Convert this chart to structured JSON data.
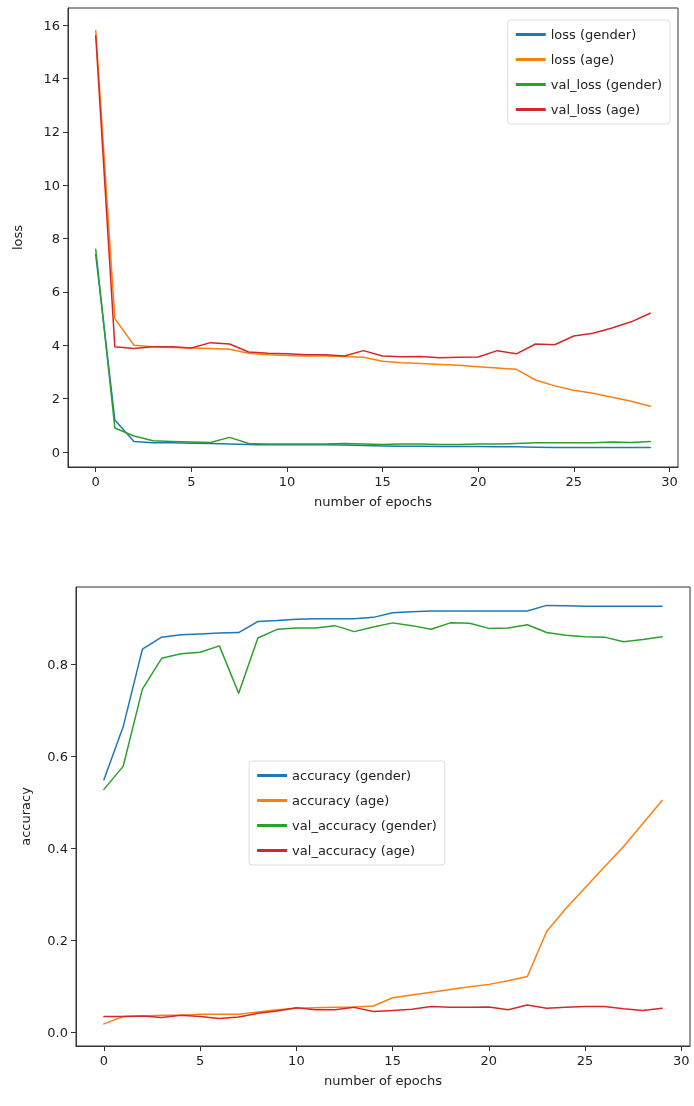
{
  "chart_data": [
    {
      "type": "line",
      "xlabel": "number of epochs",
      "ylabel": "loss",
      "x": [
        0,
        1,
        2,
        3,
        4,
        5,
        6,
        7,
        8,
        9,
        10,
        11,
        12,
        13,
        14,
        15,
        16,
        17,
        18,
        19,
        20,
        21,
        22,
        23,
        24,
        25,
        26,
        27,
        28,
        29
      ],
      "xlim": [
        -1.45,
        30.45
      ],
      "xticks": [
        0,
        5,
        10,
        15,
        20,
        25,
        30
      ],
      "ylim": [
        -0.56,
        16.64
      ],
      "yticks": [
        0,
        2,
        4,
        6,
        8,
        10,
        12,
        14,
        16
      ],
      "grid": false,
      "legend": "top right",
      "marker": "none",
      "line_style": "solid",
      "series": [
        {
          "name": "loss (gender)",
          "color": "#1f77b4",
          "values": [
            7.4,
            1.2,
            0.4,
            0.35,
            0.35,
            0.33,
            0.32,
            0.3,
            0.28,
            0.27,
            0.27,
            0.27,
            0.27,
            0.26,
            0.25,
            0.23,
            0.22,
            0.22,
            0.21,
            0.21,
            0.21,
            0.2,
            0.2,
            0.18,
            0.17,
            0.17,
            0.17,
            0.17,
            0.17,
            0.17
          ]
        },
        {
          "name": "loss (age)",
          "color": "#ff7f0e",
          "values": [
            15.8,
            5.0,
            4.0,
            3.95,
            3.92,
            3.9,
            3.88,
            3.85,
            3.7,
            3.65,
            3.62,
            3.6,
            3.6,
            3.58,
            3.55,
            3.4,
            3.35,
            3.32,
            3.28,
            3.25,
            3.2,
            3.15,
            3.1,
            2.7,
            2.48,
            2.32,
            2.2,
            2.05,
            1.9,
            1.72
          ]
        },
        {
          "name": "val_loss (gender)",
          "color": "#2ca02c",
          "values": [
            7.6,
            0.9,
            0.6,
            0.42,
            0.4,
            0.38,
            0.36,
            0.55,
            0.32,
            0.3,
            0.3,
            0.3,
            0.3,
            0.32,
            0.3,
            0.28,
            0.3,
            0.3,
            0.28,
            0.28,
            0.3,
            0.3,
            0.32,
            0.35,
            0.35,
            0.35,
            0.35,
            0.38,
            0.36,
            0.4
          ]
        },
        {
          "name": "val_loss (age)",
          "color": "#d62728",
          "values": [
            15.6,
            3.95,
            3.88,
            3.95,
            3.95,
            3.9,
            4.1,
            4.05,
            3.75,
            3.7,
            3.68,
            3.65,
            3.65,
            3.6,
            3.8,
            3.6,
            3.57,
            3.58,
            3.53,
            3.55,
            3.56,
            3.8,
            3.68,
            4.05,
            4.02,
            4.35,
            4.45,
            4.65,
            4.88,
            5.2
          ]
        }
      ]
    },
    {
      "type": "line",
      "xlabel": "number of epochs",
      "ylabel": "accuracy",
      "x": [
        0,
        1,
        2,
        3,
        4,
        5,
        6,
        7,
        8,
        9,
        10,
        11,
        12,
        13,
        14,
        15,
        16,
        17,
        18,
        19,
        20,
        21,
        22,
        23,
        24,
        25,
        26,
        27,
        28,
        29
      ],
      "xlim": [
        -1.45,
        30.45
      ],
      "xticks": [
        0,
        5,
        10,
        15,
        20,
        25,
        30
      ],
      "ylim": [
        -0.029,
        0.969
      ],
      "yticks": [
        {
          "value": 0,
          "label": "0.0"
        },
        0.2,
        0.4,
        0.6,
        0.8
      ],
      "grid": false,
      "legend": "center",
      "marker": "none",
      "line_style": "solid",
      "series": [
        {
          "name": "accuracy (gender)",
          "color": "#1f77b4",
          "values": [
            0.55,
            0.665,
            0.834,
            0.86,
            0.865,
            0.867,
            0.869,
            0.87,
            0.894,
            0.896,
            0.899,
            0.9,
            0.9,
            0.9,
            0.903,
            0.913,
            0.915,
            0.917,
            0.917,
            0.917,
            0.917,
            0.917,
            0.917,
            0.929,
            0.928,
            0.927,
            0.927,
            0.927,
            0.927,
            0.927
          ]
        },
        {
          "name": "accuracy (age)",
          "color": "#ff7f0e",
          "values": [
            0.019,
            0.035,
            0.036,
            0.038,
            0.038,
            0.04,
            0.04,
            0.04,
            0.045,
            0.05,
            0.053,
            0.054,
            0.055,
            0.056,
            0.058,
            0.076,
            0.082,
            0.088,
            0.094,
            0.1,
            0.105,
            0.113,
            0.122,
            0.22,
            0.27,
            0.315,
            0.36,
            0.405,
            0.455,
            0.505
          ]
        },
        {
          "name": "val_accuracy (gender)",
          "color": "#2ca02c",
          "values": [
            0.529,
            0.579,
            0.747,
            0.814,
            0.824,
            0.827,
            0.841,
            0.738,
            0.858,
            0.877,
            0.88,
            0.88,
            0.885,
            0.872,
            0.882,
            0.891,
            0.885,
            0.877,
            0.891,
            0.89,
            0.879,
            0.88,
            0.887,
            0.87,
            0.864,
            0.861,
            0.86,
            0.85,
            0.855,
            0.861
          ]
        },
        {
          "name": "val_accuracy (age)",
          "color": "#d62728",
          "values": [
            0.035,
            0.035,
            0.036,
            0.033,
            0.038,
            0.035,
            0.031,
            0.034,
            0.042,
            0.047,
            0.054,
            0.05,
            0.05,
            0.055,
            0.046,
            0.048,
            0.051,
            0.057,
            0.055,
            0.055,
            0.056,
            0.05,
            0.06,
            0.053,
            0.055,
            0.057,
            0.057,
            0.052,
            0.048,
            0.053
          ]
        }
      ]
    }
  ]
}
